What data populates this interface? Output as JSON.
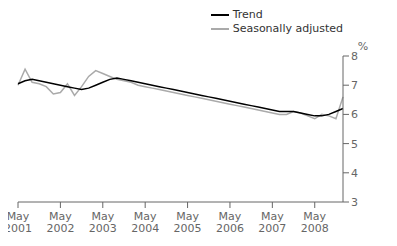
{
  "chart_data": {
    "type": "line",
    "categories": [
      "May\n2001",
      null,
      null,
      null,
      null,
      null,
      "May\n2002",
      null,
      null,
      null,
      null,
      null,
      "May\n2003",
      null,
      null,
      null,
      null,
      null,
      "May\n2004",
      null,
      null,
      null,
      null,
      null,
      "May\n2005",
      null,
      null,
      null,
      null,
      null,
      "May\n2006",
      null,
      null,
      null,
      null,
      null,
      "May\n2007",
      null,
      null,
      null,
      null,
      null,
      "May\n2008",
      null,
      null,
      null,
      null
    ],
    "series": [
      {
        "name": "Trend",
        "color": "#000000",
        "values": [
          7.05,
          7.15,
          7.2,
          7.15,
          7.1,
          7.05,
          7.0,
          6.95,
          6.9,
          6.85,
          6.9,
          7.0,
          7.1,
          7.2,
          7.25,
          7.2,
          7.15,
          7.1,
          7.05,
          7.0,
          6.95,
          6.9,
          6.85,
          6.8,
          6.75,
          6.7,
          6.65,
          6.6,
          6.55,
          6.5,
          6.45,
          6.4,
          6.35,
          6.3,
          6.25,
          6.2,
          6.15,
          6.1,
          6.1,
          6.1,
          6.05,
          6.0,
          5.95,
          5.95,
          6.0,
          6.1,
          6.2
        ]
      },
      {
        "name": "Seasonally adjusted",
        "color": "#aaaaaa",
        "values": [
          7.0,
          7.55,
          7.1,
          7.05,
          6.95,
          6.7,
          6.75,
          7.05,
          6.65,
          6.95,
          7.3,
          7.5,
          7.4,
          7.3,
          7.2,
          7.15,
          7.1,
          7.0,
          6.95,
          6.9,
          6.85,
          6.8,
          6.75,
          6.7,
          6.65,
          6.6,
          6.55,
          6.5,
          6.45,
          6.4,
          6.35,
          6.3,
          6.25,
          6.2,
          6.15,
          6.1,
          6.05,
          6.0,
          6.0,
          6.1,
          6.05,
          5.95,
          5.85,
          6.0,
          5.95,
          5.85,
          6.6
        ]
      }
    ],
    "ylim": [
      3,
      8
    ],
    "yticks": [
      3,
      4,
      5,
      6,
      7,
      8
    ],
    "ylabel": "%",
    "grid": false,
    "legend": "upper right"
  }
}
